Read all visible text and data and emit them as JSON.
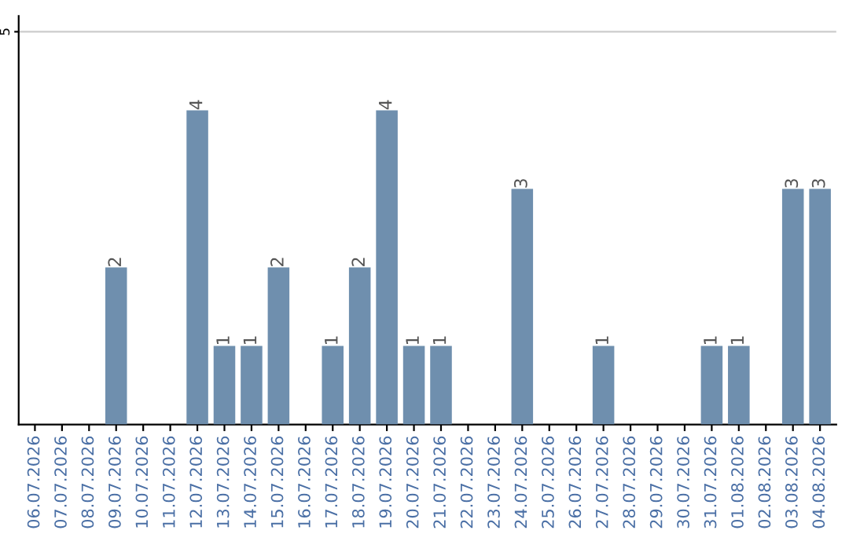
{
  "chart_data": {
    "type": "bar",
    "categories": [
      "06.07.2026",
      "07.07.2026",
      "08.07.2026",
      "09.07.2026",
      "10.07.2026",
      "11.07.2026",
      "12.07.2026",
      "13.07.2026",
      "14.07.2026",
      "15.07.2026",
      "16.07.2026",
      "17.07.2026",
      "18.07.2026",
      "19.07.2026",
      "20.07.2026",
      "21.07.2026",
      "22.07.2026",
      "23.07.2026",
      "24.07.2026",
      "25.07.2026",
      "26.07.2026",
      "27.07.2026",
      "28.07.2026",
      "29.07.2026",
      "30.07.2026",
      "31.07.2026",
      "01.08.2026",
      "02.08.2026",
      "03.08.2026",
      "04.08.2026"
    ],
    "values": [
      0,
      0,
      0,
      2,
      0,
      0,
      4,
      1,
      1,
      2,
      0,
      1,
      2,
      4,
      1,
      1,
      0,
      0,
      3,
      0,
      0,
      1,
      0,
      0,
      0,
      1,
      1,
      0,
      3,
      3
    ],
    "value_labels": [
      null,
      null,
      null,
      "2",
      null,
      null,
      "4",
      "1",
      "1",
      "2",
      null,
      "1",
      "2",
      "4",
      "1",
      "1",
      null,
      null,
      "3",
      null,
      null,
      "1",
      null,
      null,
      null,
      "1",
      "1",
      null,
      "3",
      "3"
    ],
    "color": "#6f8fae",
    "ylim": [
      0,
      5.2
    ],
    "yticks": [
      5
    ],
    "grid": "y"
  }
}
